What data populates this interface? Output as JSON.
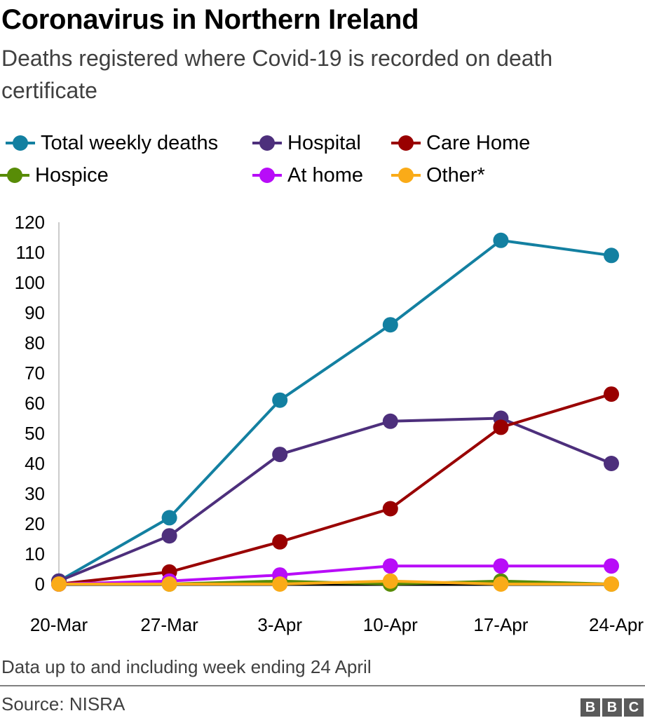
{
  "header": {
    "title": "Coronavirus in Northern Ireland",
    "subtitle": "Deaths registered where Covid-19 is recorded on death certificate"
  },
  "footer": {
    "note": "Data up to and including week ending 24 April",
    "source": "Source: NISRA",
    "logo": [
      "B",
      "B",
      "C"
    ]
  },
  "chart_data": {
    "type": "line",
    "title": "Coronavirus in Northern Ireland",
    "subtitle": "Deaths registered where Covid-19 is recorded on death certificate",
    "xlabel": "",
    "ylabel": "",
    "categories": [
      "20-Mar",
      "27-Mar",
      "3-Apr",
      "10-Apr",
      "17-Apr",
      "24-Apr"
    ],
    "ylim": [
      0,
      120
    ],
    "yticks": [
      "0",
      "10",
      "20",
      "30",
      "40",
      "50",
      "60",
      "70",
      "80",
      "90",
      "100",
      "110",
      "120"
    ],
    "grid": false,
    "legend_position": "top",
    "series": [
      {
        "name": "Total weekly deaths",
        "color": "#1380a1",
        "values": [
          1,
          22,
          61,
          86,
          114,
          109
        ]
      },
      {
        "name": "Hospital",
        "color": "#4d2f7c",
        "values": [
          1,
          16,
          43,
          54,
          55,
          40
        ]
      },
      {
        "name": "Care Home",
        "color": "#990000",
        "values": [
          0,
          4,
          14,
          25,
          52,
          63
        ]
      },
      {
        "name": "Hospice",
        "color": "#588c07",
        "values": [
          0,
          0,
          1,
          0,
          1,
          0
        ]
      },
      {
        "name": "At home",
        "color": "#b80cf8",
        "values": [
          0,
          1,
          3,
          6,
          6,
          6
        ]
      },
      {
        "name": "Other*",
        "color": "#faab18",
        "values": [
          0,
          0,
          0,
          1,
          0,
          0
        ]
      }
    ]
  }
}
